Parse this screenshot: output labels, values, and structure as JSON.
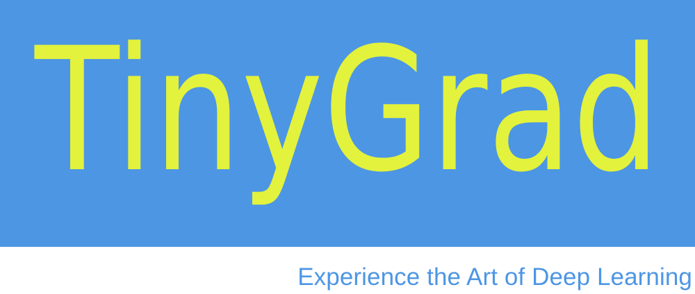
{
  "logo": {
    "wordmark": "TinyGrad",
    "tagline": "Experience the Art of Deep Learning"
  },
  "colors": {
    "banner_background": "#4d96e4",
    "wordmark": "#e3f23c",
    "tagline": "#4d96e4",
    "page_background": "#ffffff"
  }
}
